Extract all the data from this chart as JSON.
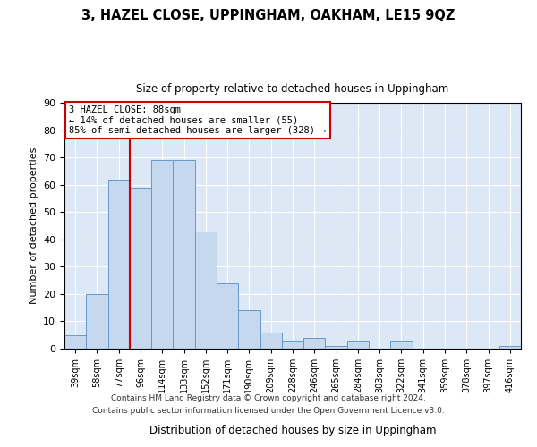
{
  "title": "3, HAZEL CLOSE, UPPINGHAM, OAKHAM, LE15 9QZ",
  "subtitle": "Size of property relative to detached houses in Uppingham",
  "xlabel": "Distribution of detached houses by size in Uppingham",
  "ylabel": "Number of detached properties",
  "categories": [
    "39sqm",
    "58sqm",
    "77sqm",
    "96sqm",
    "114sqm",
    "133sqm",
    "152sqm",
    "171sqm",
    "190sqm",
    "209sqm",
    "228sqm",
    "246sqm",
    "265sqm",
    "284sqm",
    "303sqm",
    "322sqm",
    "341sqm",
    "359sqm",
    "378sqm",
    "397sqm",
    "416sqm"
  ],
  "values": [
    5,
    20,
    62,
    59,
    69,
    69,
    43,
    24,
    14,
    6,
    3,
    4,
    1,
    3,
    0,
    3,
    0,
    0,
    0,
    0,
    1
  ],
  "bar_color": "#c5d8ee",
  "bar_edge_color": "#6699cc",
  "red_line_x": 2.5,
  "annotation_title": "3 HAZEL CLOSE: 88sqm",
  "annotation_line1": "← 14% of detached houses are smaller (55)",
  "annotation_line2": "85% of semi-detached houses are larger (328) →",
  "annotation_box_color": "#ffffff",
  "annotation_box_edge": "#cc0000",
  "ylim": [
    0,
    90
  ],
  "yticks": [
    0,
    10,
    20,
    30,
    40,
    50,
    60,
    70,
    80,
    90
  ],
  "footer1": "Contains HM Land Registry data © Crown copyright and database right 2024.",
  "footer2": "Contains public sector information licensed under the Open Government Licence v3.0.",
  "fig_bg_color": "#ffffff",
  "plot_bg_color": "#dce8f5"
}
